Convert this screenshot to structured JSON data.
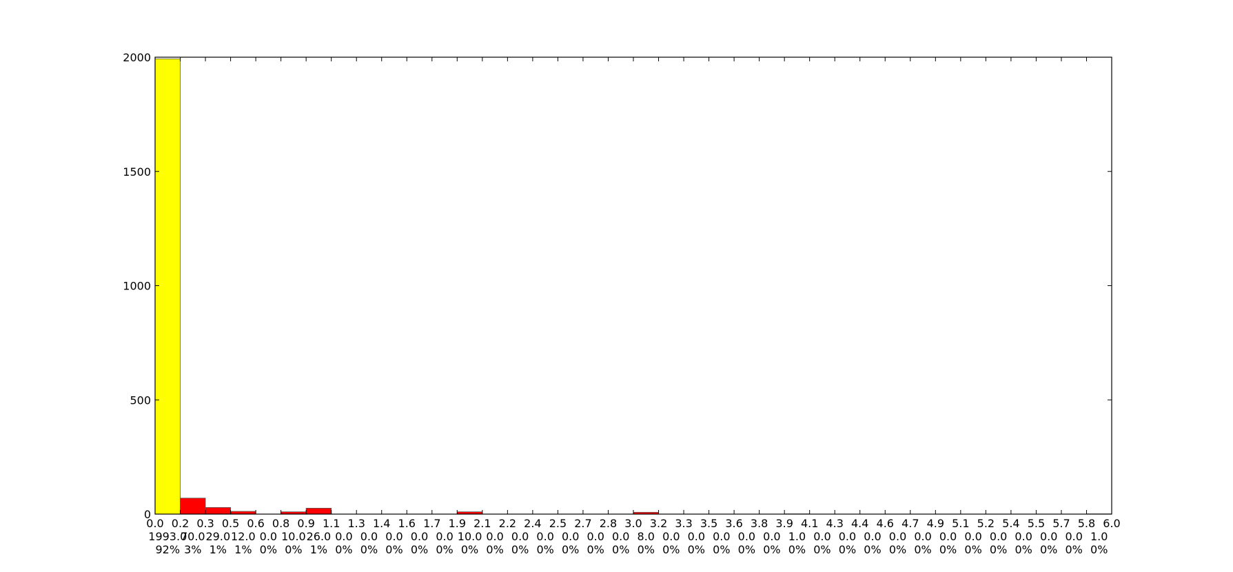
{
  "chart_data": {
    "type": "bar",
    "title": "",
    "xlabel": "",
    "ylabel": "",
    "xlim": [
      0.0,
      6.0
    ],
    "ylim": [
      0,
      2000
    ],
    "grid": false,
    "legend": "none",
    "bins": 38,
    "highlight_color": "#ffff00",
    "bar_color": "#ff0000",
    "y_ticks": [
      "0",
      "500",
      "1000",
      "1500",
      "2000"
    ],
    "y_tick_values": [
      0,
      500,
      1000,
      1500,
      2000
    ],
    "x_tick_labels": [
      "0.0",
      "0.2",
      "0.3",
      "0.5",
      "0.6",
      "0.8",
      "0.9",
      "1.1",
      "1.3",
      "1.4",
      "1.6",
      "1.7",
      "1.9",
      "2.1",
      "2.2",
      "2.4",
      "2.5",
      "2.7",
      "2.8",
      "3.0",
      "3.2",
      "3.3",
      "3.5",
      "3.6",
      "3.8",
      "3.9",
      "4.1",
      "4.3",
      "4.4",
      "4.6",
      "4.7",
      "4.9",
      "5.1",
      "5.2",
      "5.4",
      "5.5",
      "5.7",
      "5.8",
      "6.0"
    ],
    "count_labels": [
      "1993.0",
      "70.0",
      "29.0",
      "12.0",
      "0.0",
      "10.0",
      "26.0",
      "0.0",
      "0.0",
      "0.0",
      "0.0",
      "0.0",
      "10.0",
      "0.0",
      "0.0",
      "0.0",
      "0.0",
      "0.0",
      "0.0",
      "8.0",
      "0.0",
      "0.0",
      "0.0",
      "0.0",
      "0.0",
      "1.0",
      "0.0",
      "0.0",
      "0.0",
      "0.0",
      "0.0",
      "0.0",
      "0.0",
      "0.0",
      "0.0",
      "0.0",
      "0.0",
      "1.0"
    ],
    "values": [
      1993,
      70,
      29,
      12,
      0,
      10,
      26,
      0,
      0,
      0,
      0,
      0,
      10,
      0,
      0,
      0,
      0,
      0,
      0,
      8,
      0,
      0,
      0,
      0,
      0,
      1,
      0,
      0,
      0,
      0,
      0,
      0,
      0,
      0,
      0,
      0,
      0,
      1
    ],
    "percent_labels": [
      "92%",
      "3%",
      "1%",
      "1%",
      "0%",
      "0%",
      "1%",
      "0%",
      "0%",
      "0%",
      "0%",
      "0%",
      "0%",
      "0%",
      "0%",
      "0%",
      "0%",
      "0%",
      "0%",
      "0%",
      "0%",
      "0%",
      "0%",
      "0%",
      "0%",
      "0%",
      "0%",
      "0%",
      "0%",
      "0%",
      "0%",
      "0%",
      "0%",
      "0%",
      "0%",
      "0%",
      "0%",
      "0%"
    ],
    "highlight_index": 0
  }
}
